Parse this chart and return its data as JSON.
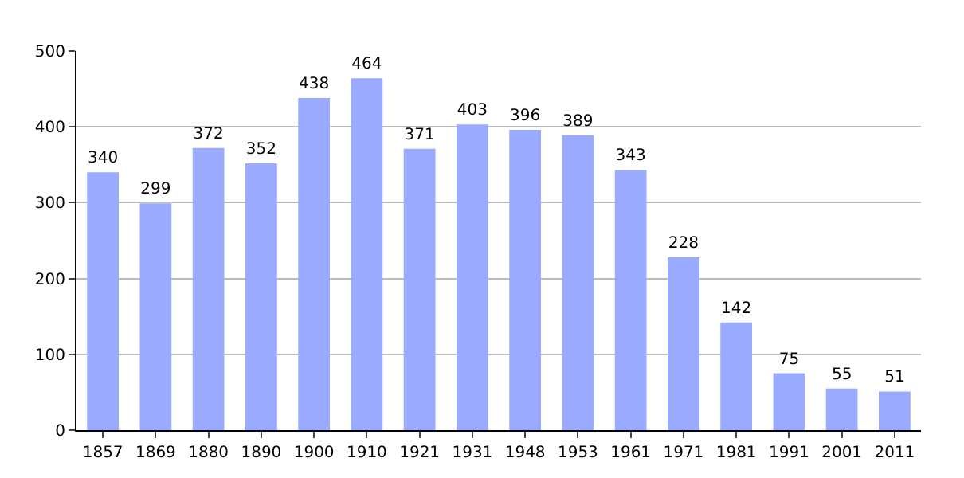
{
  "chart_data": {
    "type": "bar",
    "categories": [
      "1857",
      "1869",
      "1880",
      "1890",
      "1900",
      "1910",
      "1921",
      "1931",
      "1948",
      "1953",
      "1961",
      "1971",
      "1981",
      "1991",
      "2001",
      "2011"
    ],
    "values": [
      340,
      299,
      372,
      352,
      438,
      464,
      371,
      403,
      396,
      389,
      343,
      228,
      142,
      75,
      55,
      51
    ],
    "color": "#99aaff",
    "ylim": [
      0,
      500
    ],
    "yticks": [
      0,
      100,
      200,
      300,
      400,
      500
    ],
    "grid": "y",
    "data_labels": true
  }
}
